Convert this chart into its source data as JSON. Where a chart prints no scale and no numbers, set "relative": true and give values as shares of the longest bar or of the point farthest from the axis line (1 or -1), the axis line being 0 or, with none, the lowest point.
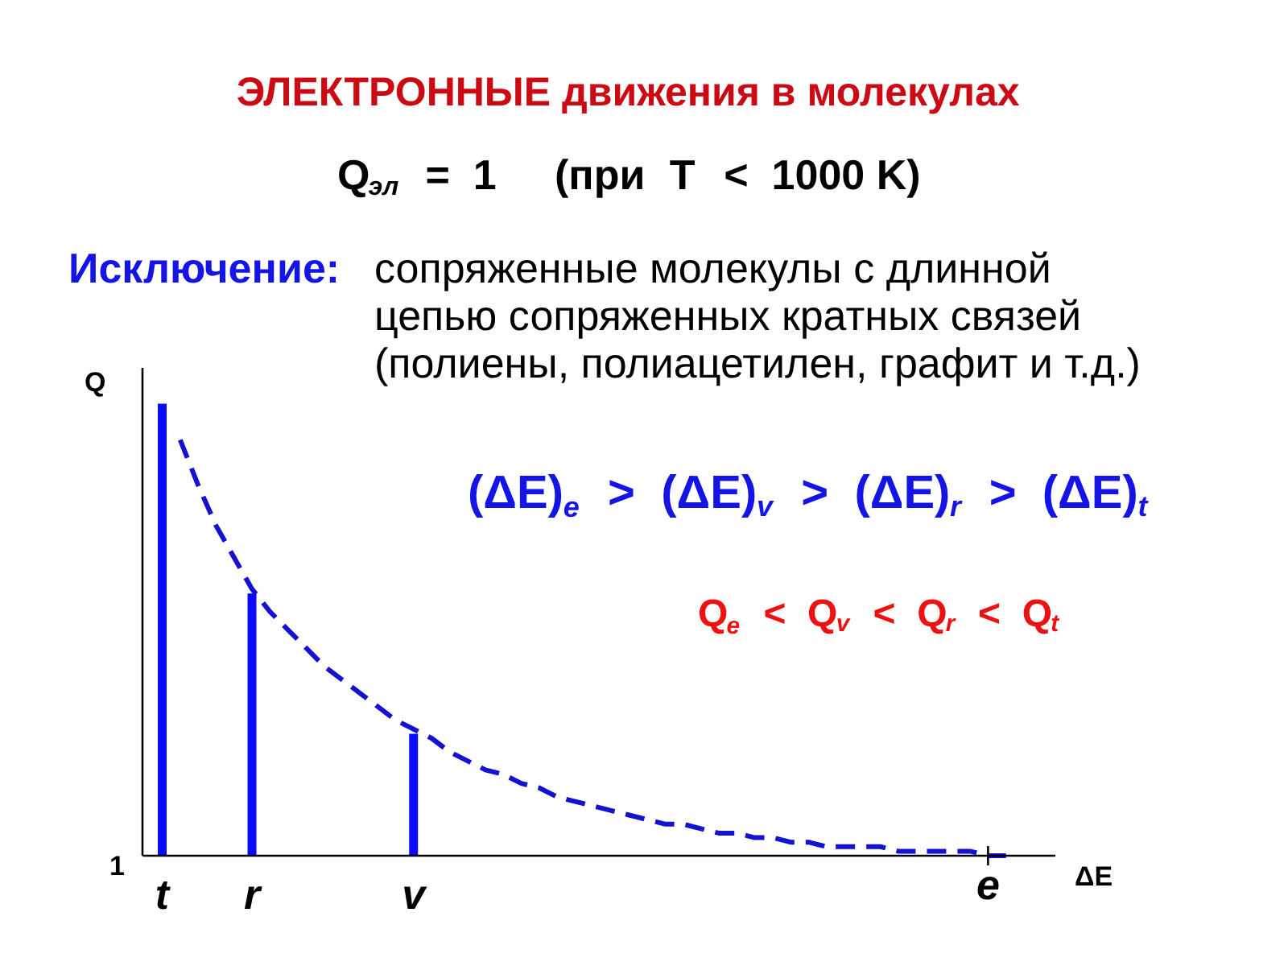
{
  "chart_data": {
    "type": "bar",
    "relative": true,
    "title": "ЭЛЕКТРОННЫЕ движения в молекулах",
    "subtitle": "Q$_{эл}$  =  1     (при  T  <  1000 K)",
    "xlabel": "ΔE",
    "ylabel": "Q",
    "categories": [
      "t",
      null,
      null,
      null,
      null,
      "r",
      null,
      null,
      null,
      null,
      null,
      null,
      null,
      null,
      "v",
      null,
      null,
      null,
      null,
      null,
      null,
      null,
      null,
      null,
      null,
      null,
      null,
      null,
      null,
      null,
      null,
      null,
      null,
      null,
      null,
      null,
      null,
      null,
      null,
      null,
      null,
      null,
      null,
      null,
      null,
      null,
      "e",
      null
    ],
    "series": [
      {
        "color": "#0a0aff",
        "values": [
          1,
          null,
          null,
          null,
          null,
          0.58,
          null,
          null,
          null,
          null,
          null,
          null,
          null,
          null,
          0.27,
          null,
          null,
          null,
          null,
          null,
          null,
          null,
          null,
          null,
          null,
          null,
          null,
          null,
          null,
          null,
          null,
          null,
          null,
          null,
          null,
          null,
          null,
          null,
          null,
          null,
          null,
          null,
          null,
          null,
          null,
          null,
          null,
          null
        ]
      },
      {
        "type": "line",
        "color": "#1212d0",
        "values": [
          null,
          0.92,
          0.82,
          0.73,
          0.66,
          0.59,
          0.54,
          0.5,
          0.46,
          0.42,
          0.39,
          0.36,
          0.33,
          0.3,
          0.28,
          0.26,
          0.23,
          0.21,
          0.19,
          0.18,
          0.16,
          0.15,
          0.13,
          0.12,
          0.11,
          0.1,
          0.09,
          0.08,
          0.07,
          0.07,
          0.06,
          0.05,
          0.05,
          0.04,
          0.04,
          0.03,
          0.03,
          0.02,
          0.02,
          0.02,
          0.02,
          0.01,
          0.01,
          0.01,
          0.01,
          0.01,
          0.0,
          0.0
        ]
      }
    ],
    "line_style": "dashed",
    "annotations": [
      "1",
      "Исключение:",
      "сопряженные молекулы с длинной\nцепью сопряженных кратных связей\n(полиены, полиацетилен, графит и т.д.)",
      "(ΔE)$_{e}$  >  (ΔE)$_{v}$  >  (ΔE)$_{r}$  >  (ΔE)$_{t}$",
      "Q$_{e}$  <  Q$_{v}$  <  Q$_{r}$  <  Q$_{t}$"
    ]
  }
}
